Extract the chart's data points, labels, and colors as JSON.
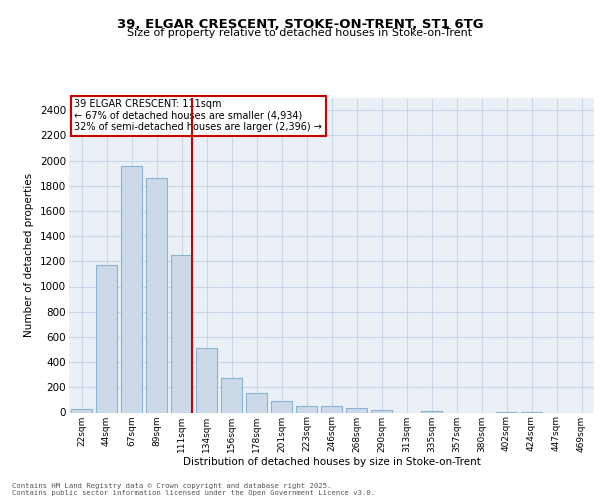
{
  "title_line1": "39, ELGAR CRESCENT, STOKE-ON-TRENT, ST1 6TG",
  "title_line2": "Size of property relative to detached houses in Stoke-on-Trent",
  "xlabel": "Distribution of detached houses by size in Stoke-on-Trent",
  "ylabel": "Number of detached properties",
  "categories": [
    "22sqm",
    "44sqm",
    "67sqm",
    "89sqm",
    "111sqm",
    "134sqm",
    "156sqm",
    "178sqm",
    "201sqm",
    "223sqm",
    "246sqm",
    "268sqm",
    "290sqm",
    "313sqm",
    "335sqm",
    "357sqm",
    "380sqm",
    "402sqm",
    "424sqm",
    "447sqm",
    "469sqm"
  ],
  "values": [
    30,
    1170,
    1960,
    1860,
    1250,
    515,
    270,
    155,
    90,
    48,
    48,
    35,
    18,
    0,
    10,
    0,
    0,
    5,
    5,
    0,
    0
  ],
  "bar_color": "#ccd9e8",
  "bar_edge_color": "#8ab4d4",
  "red_line_index": 4,
  "red_line_color": "#cc0000",
  "annotation_text": "39 ELGAR CRESCENT: 111sqm\n← 67% of detached houses are smaller (4,934)\n32% of semi-detached houses are larger (2,396) →",
  "annotation_box_color": "#cc0000",
  "ylim": [
    0,
    2500
  ],
  "yticks": [
    0,
    200,
    400,
    600,
    800,
    1000,
    1200,
    1400,
    1600,
    1800,
    2000,
    2200,
    2400
  ],
  "grid_color": "#c8d8e8",
  "background_color": "#eaf0f6",
  "footer_line1": "Contains HM Land Registry data © Crown copyright and database right 2025.",
  "footer_line2": "Contains public sector information licensed under the Open Government Licence v3.0."
}
